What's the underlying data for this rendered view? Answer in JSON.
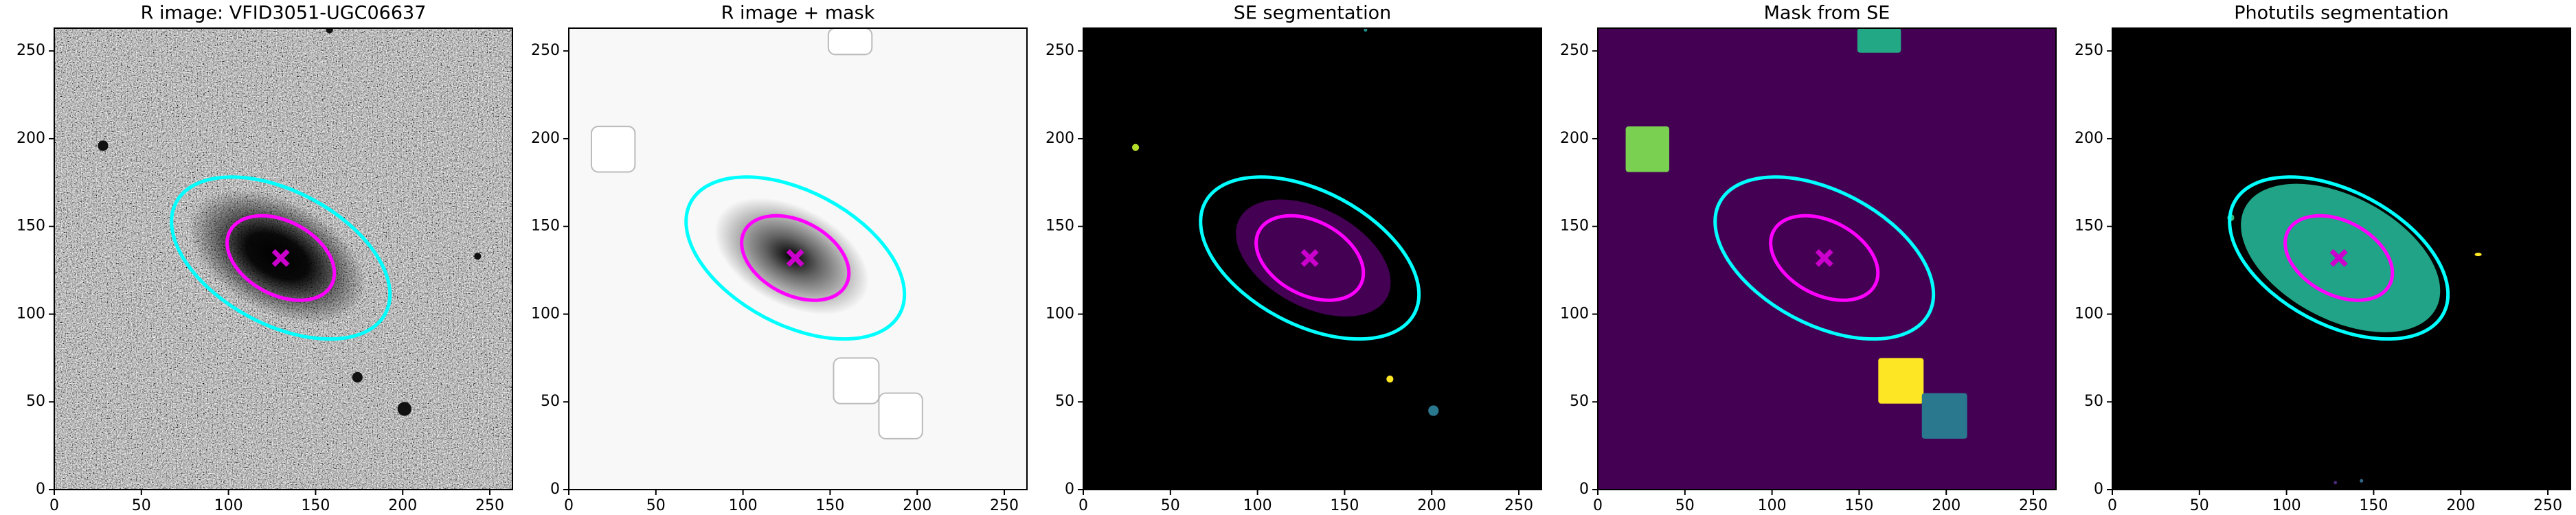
{
  "overlay": {
    "ellipses": [
      {
        "cx": 130,
        "cy": 132,
        "a": 33,
        "b": 21,
        "angle": -28,
        "color": "#ff00ff"
      },
      {
        "cx": 130,
        "cy": 132,
        "a": 68,
        "b": 38,
        "angle": -28,
        "color": "#00ffff"
      }
    ],
    "marker": {
      "x": 130,
      "y": 132,
      "color": "#cc00cc"
    }
  },
  "chart_data": [
    {
      "type": "image",
      "title": "R image: VFID3051-UGC06637",
      "background": "#808080",
      "noise": true,
      "xlim": [
        0,
        263
      ],
      "ylim": [
        0,
        263
      ],
      "xticks": [
        0,
        50,
        100,
        150,
        200,
        250
      ],
      "yticks": [
        0,
        50,
        100,
        150,
        200,
        250
      ],
      "regions": [
        {
          "shape": "glow",
          "cx": 128,
          "cy": 133,
          "rx": 55,
          "ry": 32,
          "angle": -28,
          "color": "#000000"
        },
        {
          "shape": "ellipse",
          "cx": 28,
          "cy": 196,
          "rx": 3,
          "ry": 3,
          "angle": 0,
          "color": "#111111"
        },
        {
          "shape": "ellipse",
          "cx": 243,
          "cy": 133,
          "rx": 2,
          "ry": 2,
          "angle": 0,
          "color": "#111111"
        },
        {
          "shape": "ellipse",
          "cx": 174,
          "cy": 64,
          "rx": 3,
          "ry": 3,
          "angle": 0,
          "color": "#111111"
        },
        {
          "shape": "ellipse",
          "cx": 201,
          "cy": 46,
          "rx": 4,
          "ry": 4,
          "angle": 0,
          "color": "#111111"
        },
        {
          "shape": "ellipse",
          "cx": 158,
          "cy": 262,
          "rx": 2,
          "ry": 2,
          "angle": 0,
          "color": "#111111"
        }
      ]
    },
    {
      "type": "image",
      "title": "R image + mask",
      "background": "#f8f8f8",
      "noise": false,
      "xlim": [
        0,
        263
      ],
      "ylim": [
        0,
        263
      ],
      "xticks": [
        0,
        50,
        100,
        150,
        200,
        250
      ],
      "yticks": [
        0,
        50,
        100,
        150,
        200,
        250
      ],
      "regions": [
        {
          "shape": "glow",
          "cx": 128,
          "cy": 133,
          "rx": 48,
          "ry": 28,
          "angle": -28,
          "color": "#000000"
        },
        {
          "shape": "box",
          "x0": 13,
          "y0": 181,
          "x1": 38,
          "y1": 207,
          "color": "#ffffff"
        },
        {
          "shape": "box",
          "x0": 149,
          "y0": 248,
          "x1": 174,
          "y1": 263,
          "color": "#ffffff"
        },
        {
          "shape": "box",
          "x0": 152,
          "y0": 49,
          "x1": 178,
          "y1": 75,
          "color": "#ffffff"
        },
        {
          "shape": "box",
          "x0": 178,
          "y0": 29,
          "x1": 203,
          "y1": 55,
          "color": "#ffffff"
        }
      ]
    },
    {
      "type": "image",
      "title": "SE segmentation",
      "background": "#000000",
      "noise": false,
      "xlim": [
        0,
        263
      ],
      "ylim": [
        0,
        263
      ],
      "xticks": [
        0,
        50,
        100,
        150,
        200,
        250
      ],
      "yticks": [
        0,
        50,
        100,
        150,
        200,
        250
      ],
      "regions": [
        {
          "shape": "ellipse",
          "cx": 132,
          "cy": 132,
          "rx": 48,
          "ry": 28,
          "angle": -28,
          "color": "#440154"
        },
        {
          "shape": "ellipse",
          "cx": 30,
          "cy": 195,
          "rx": 2,
          "ry": 2,
          "angle": 0,
          "color": "#b5de2b"
        },
        {
          "shape": "ellipse",
          "cx": 176,
          "cy": 63,
          "rx": 2,
          "ry": 2,
          "angle": 0,
          "color": "#fde725"
        },
        {
          "shape": "ellipse",
          "cx": 201,
          "cy": 45,
          "rx": 3,
          "ry": 3,
          "angle": 0,
          "color": "#2a788e"
        },
        {
          "shape": "ellipse",
          "cx": 162,
          "cy": 262,
          "rx": 1,
          "ry": 1,
          "angle": 0,
          "color": "#21918c"
        }
      ]
    },
    {
      "type": "image",
      "title": "Mask from SE",
      "background": "#440154",
      "noise": false,
      "xlim": [
        0,
        263
      ],
      "ylim": [
        0,
        263
      ],
      "xticks": [
        0,
        50,
        100,
        150,
        200,
        250
      ],
      "yticks": [
        0,
        50,
        100,
        150,
        200,
        250
      ],
      "regions": [
        {
          "shape": "rect",
          "x0": 16,
          "y0": 181,
          "x1": 41,
          "y1": 207,
          "color": "#7ad151"
        },
        {
          "shape": "rect",
          "x0": 149,
          "y0": 249,
          "x1": 174,
          "y1": 263,
          "color": "#22a884"
        },
        {
          "shape": "rect",
          "x0": 161,
          "y0": 49,
          "x1": 187,
          "y1": 75,
          "color": "#fde725"
        },
        {
          "shape": "rect",
          "x0": 186,
          "y0": 29,
          "x1": 212,
          "y1": 55,
          "color": "#2a788e"
        }
      ]
    },
    {
      "type": "image",
      "title": "Photutils segmentation",
      "background": "#000000",
      "noise": false,
      "xlim": [
        0,
        263
      ],
      "ylim": [
        0,
        263
      ],
      "xticks": [
        0,
        50,
        100,
        150,
        200,
        250
      ],
      "yticks": [
        0,
        50,
        100,
        150,
        200,
        250
      ],
      "regions": [
        {
          "shape": "ellipse",
          "cx": 131,
          "cy": 132,
          "rx": 62,
          "ry": 35,
          "angle": -28,
          "color": "#20a386"
        },
        {
          "shape": "ellipse",
          "cx": 68,
          "cy": 155,
          "rx": 2,
          "ry": 2,
          "angle": 0,
          "color": "#35b779"
        },
        {
          "shape": "ellipse",
          "cx": 210,
          "cy": 134,
          "rx": 2,
          "ry": 1,
          "angle": 0,
          "color": "#fde725"
        },
        {
          "shape": "ellipse",
          "cx": 143,
          "cy": 5,
          "rx": 1,
          "ry": 1,
          "angle": 0,
          "color": "#31688e"
        },
        {
          "shape": "ellipse",
          "cx": 128,
          "cy": 4,
          "rx": 1,
          "ry": 1,
          "angle": 0,
          "color": "#482878"
        }
      ]
    }
  ]
}
